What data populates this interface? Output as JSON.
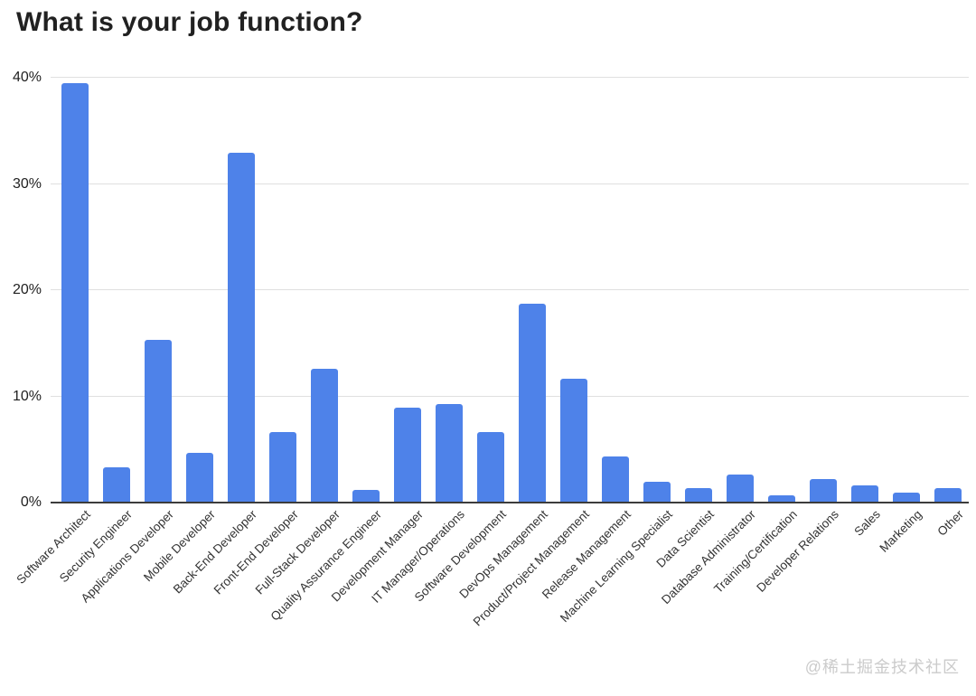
{
  "chart_data": {
    "type": "bar",
    "title": "What is your job function?",
    "xlabel": "",
    "ylabel": "",
    "ylim": [
      0,
      40
    ],
    "grid": true,
    "legend": "none",
    "y_ticks": [
      {
        "value": 0,
        "label": "0%"
      },
      {
        "value": 10,
        "label": "10%"
      },
      {
        "value": 20,
        "label": "20%"
      },
      {
        "value": 30,
        "label": "30%"
      },
      {
        "value": 40,
        "label": "40%"
      }
    ],
    "categories": [
      "Software Architect",
      "Security Engineer",
      "Applications Developer",
      "Mobile Developer",
      "Back-End Developer",
      "Front-End Developer",
      "Full-Stack Developer",
      "Quality Assurance Engineer",
      "Development Manager",
      "IT Manager/Operations",
      "Software Development",
      "DevOps Management",
      "Product/Project Management",
      "Release Management",
      "Machine Learning Specialist",
      "Data Scientist",
      "Database Administrator",
      "Training/Certification",
      "Developer Relations",
      "Sales",
      "Marketing",
      "Other"
    ],
    "values": [
      39.5,
      3.3,
      15.3,
      4.7,
      32.9,
      6.6,
      12.6,
      1.2,
      8.9,
      9.3,
      6.6,
      18.7,
      11.7,
      4.3,
      2.0,
      1.4,
      2.6,
      0.7,
      2.2,
      1.6,
      0.9,
      1.4
    ]
  },
  "colors": {
    "bar": "#4e82e9",
    "grid": "#e0e0e0",
    "axis": "#3c3c3c",
    "title": "#212121",
    "tick_label": "#1f1f1f",
    "category_label": "#333333",
    "watermark": "#cbcbcb",
    "background": "#ffffff"
  },
  "watermark": {
    "text": "@稀土掘金技术社区"
  }
}
